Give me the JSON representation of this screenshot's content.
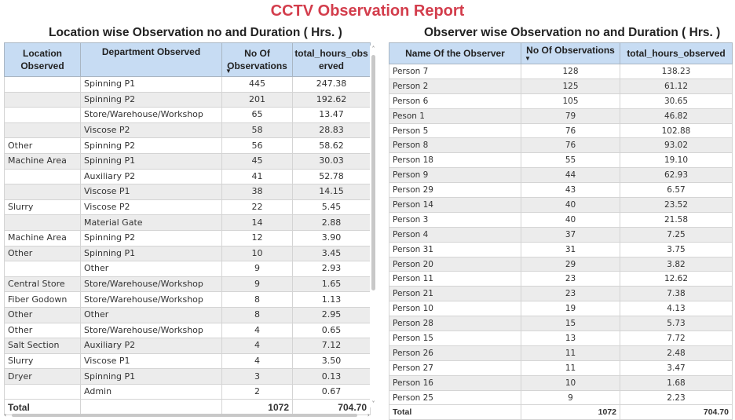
{
  "report": {
    "title": "CCTV Observation Report"
  },
  "location_panel": {
    "title": "Location wise Observation no and Duration ( Hrs. )",
    "headers": {
      "location": "Location Observed",
      "department": "Department Observed",
      "count": "No Of Observations",
      "hours": "total_hours_obs erved"
    },
    "rows": [
      {
        "location": "",
        "department": "Spinning P1",
        "count": "445",
        "hours": "247.38"
      },
      {
        "location": "",
        "department": "Spinning P2",
        "count": "201",
        "hours": "192.62"
      },
      {
        "location": "",
        "department": "Store/Warehouse/Workshop",
        "count": "65",
        "hours": "13.47"
      },
      {
        "location": "",
        "department": "Viscose P2",
        "count": "58",
        "hours": "28.83"
      },
      {
        "location": "Other",
        "department": "Spinning P2",
        "count": "56",
        "hours": "58.62"
      },
      {
        "location": "Machine Area",
        "department": "Spinning P1",
        "count": "45",
        "hours": "30.03"
      },
      {
        "location": "",
        "department": "Auxiliary P2",
        "count": "41",
        "hours": "52.78"
      },
      {
        "location": "",
        "department": "Viscose P1",
        "count": "38",
        "hours": "14.15"
      },
      {
        "location": "Slurry",
        "department": "Viscose P2",
        "count": "22",
        "hours": "5.45"
      },
      {
        "location": "",
        "department": "Material Gate",
        "count": "14",
        "hours": "2.88"
      },
      {
        "location": "Machine Area",
        "department": "Spinning P2",
        "count": "12",
        "hours": "3.90"
      },
      {
        "location": "Other",
        "department": "Spinning P1",
        "count": "10",
        "hours": "3.45"
      },
      {
        "location": "",
        "department": "Other",
        "count": "9",
        "hours": "2.93"
      },
      {
        "location": "Central Store",
        "department": "Store/Warehouse/Workshop",
        "count": "9",
        "hours": "1.65"
      },
      {
        "location": "Fiber Godown",
        "department": "Store/Warehouse/Workshop",
        "count": "8",
        "hours": "1.13"
      },
      {
        "location": "Other",
        "department": "Other",
        "count": "8",
        "hours": "2.95"
      },
      {
        "location": "Other",
        "department": "Store/Warehouse/Workshop",
        "count": "4",
        "hours": "0.65"
      },
      {
        "location": "Salt Section",
        "department": "Auxiliary P2",
        "count": "4",
        "hours": "7.12"
      },
      {
        "location": "Slurry",
        "department": "Viscose P1",
        "count": "4",
        "hours": "3.50"
      },
      {
        "location": "Dryer",
        "department": "Spinning P1",
        "count": "3",
        "hours": "0.13"
      },
      {
        "location": "",
        "department": "Admin",
        "count": "2",
        "hours": "0.67"
      }
    ],
    "total": {
      "label": "Total",
      "count": "1072",
      "hours": "704.70"
    }
  },
  "observer_panel": {
    "title": "Observer wise Observation no and Duration ( Hrs. )",
    "headers": {
      "name": "Name Of the Observer",
      "count": "No Of Observations",
      "hours": "total_hours_observed"
    },
    "rows": [
      {
        "name": "Person 7",
        "count": "128",
        "hours": "138.23"
      },
      {
        "name": "Person 2",
        "count": "125",
        "hours": "61.12"
      },
      {
        "name": "Person 6",
        "count": "105",
        "hours": "30.65"
      },
      {
        "name": "Peson 1",
        "count": "79",
        "hours": "46.82"
      },
      {
        "name": "Person 5",
        "count": "76",
        "hours": "102.88"
      },
      {
        "name": "Person 8",
        "count": "76",
        "hours": "93.02"
      },
      {
        "name": "Person 18",
        "count": "55",
        "hours": "19.10"
      },
      {
        "name": "Person 9",
        "count": "44",
        "hours": "62.93"
      },
      {
        "name": "Person 29",
        "count": "43",
        "hours": "6.57"
      },
      {
        "name": "Person 14",
        "count": "40",
        "hours": "23.52"
      },
      {
        "name": "Person 3",
        "count": "40",
        "hours": "21.58"
      },
      {
        "name": "Person 4",
        "count": "37",
        "hours": "7.25"
      },
      {
        "name": "Person 31",
        "count": "31",
        "hours": "3.75"
      },
      {
        "name": "Person 20",
        "count": "29",
        "hours": "3.82"
      },
      {
        "name": "Person 11",
        "count": "23",
        "hours": "12.62"
      },
      {
        "name": "Person 21",
        "count": "23",
        "hours": "7.38"
      },
      {
        "name": "Person 10",
        "count": "19",
        "hours": "4.13"
      },
      {
        "name": "Person 28",
        "count": "15",
        "hours": "5.73"
      },
      {
        "name": "Person 15",
        "count": "13",
        "hours": "7.72"
      },
      {
        "name": "Person 26",
        "count": "11",
        "hours": "2.48"
      },
      {
        "name": "Person 27",
        "count": "11",
        "hours": "3.47"
      },
      {
        "name": "Person 16",
        "count": "10",
        "hours": "1.68"
      },
      {
        "name": "Person 25",
        "count": "9",
        "hours": "2.23"
      }
    ],
    "total": {
      "label": "Total",
      "count": "1072",
      "hours": "704.70"
    }
  },
  "icons": {
    "sort": "sort-descending-icon",
    "scroll_up": "chevron-up-icon",
    "scroll_down": "chevron-down-icon"
  },
  "colors": {
    "title": "#d33d4c",
    "header_bg": "#c7dcf3",
    "alt_row": "#ececec"
  }
}
